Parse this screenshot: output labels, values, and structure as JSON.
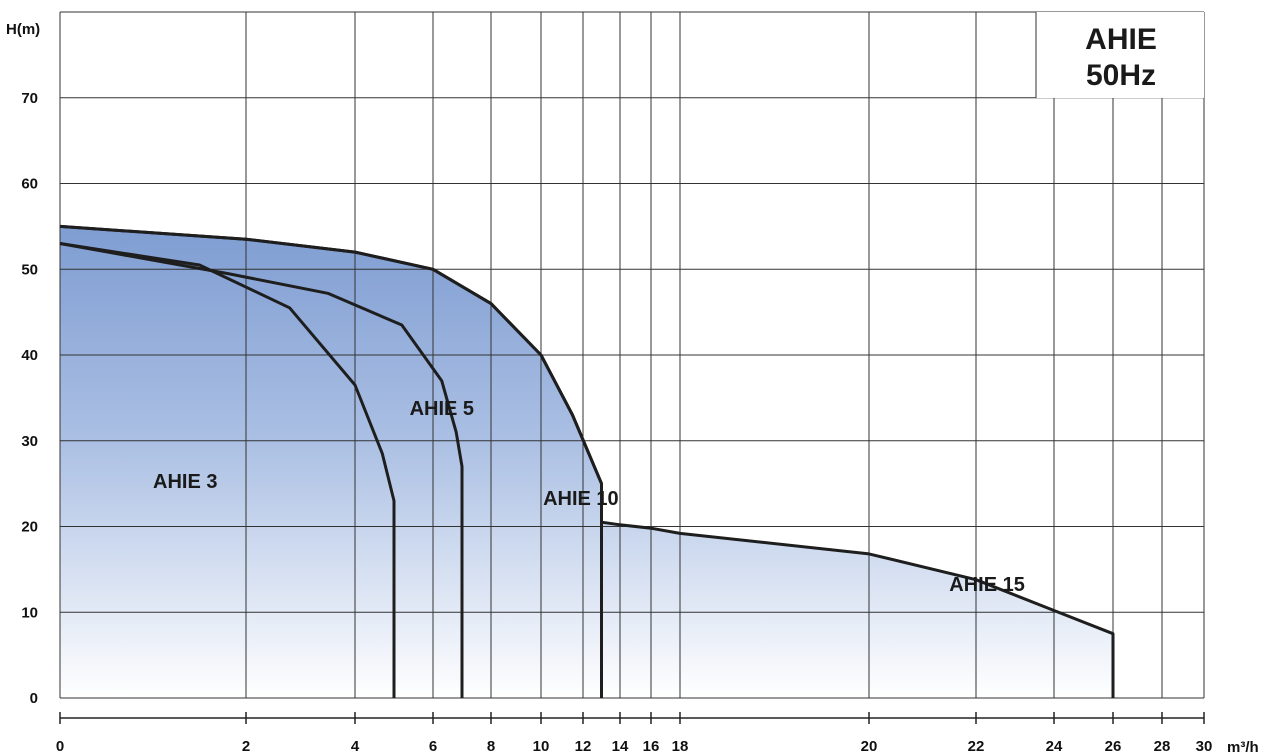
{
  "chart_data": {
    "type": "area",
    "title": "",
    "badge": [
      "AHIE",
      "50Hz"
    ],
    "ylabel": "H(m)",
    "xlabel": "m³/h",
    "ylim": [
      0,
      80
    ],
    "yticks": [
      0,
      10,
      20,
      30,
      40,
      50,
      60,
      70
    ],
    "xticks": [
      0,
      2,
      4,
      6,
      8,
      10,
      12,
      14,
      16,
      18,
      20,
      22,
      24,
      26,
      28,
      30
    ],
    "x_scale": "nonuniform",
    "grid": true,
    "series": [
      {
        "name": "AHIE 15",
        "points": [
          [
            0,
            55
          ],
          [
            2,
            53.5
          ],
          [
            4,
            52
          ],
          [
            6,
            50
          ],
          [
            8,
            46
          ],
          [
            10,
            40
          ],
          [
            11.5,
            33
          ],
          [
            13,
            25
          ],
          [
            13,
            20.5
          ],
          [
            14,
            20.2
          ],
          [
            16,
            19.8
          ],
          [
            18,
            19.2
          ],
          [
            20,
            16.8
          ],
          [
            22,
            13.8
          ],
          [
            24,
            10.2
          ],
          [
            26,
            7.5
          ],
          [
            26,
            0
          ]
        ]
      },
      {
        "name": "AHIE 10",
        "points": [
          [
            0,
            55
          ],
          [
            2,
            53.5
          ],
          [
            4,
            52
          ],
          [
            6,
            50
          ],
          [
            8,
            46
          ],
          [
            10,
            40
          ],
          [
            11.5,
            33
          ],
          [
            13,
            25
          ],
          [
            13,
            0
          ]
        ]
      },
      {
        "name": "AHIE 5",
        "points": [
          [
            0,
            53
          ],
          [
            1.8,
            49.5
          ],
          [
            3.5,
            47.2
          ],
          [
            5.2,
            43.5
          ],
          [
            6.3,
            37
          ],
          [
            6.8,
            31
          ],
          [
            7,
            27
          ],
          [
            7,
            0
          ]
        ]
      },
      {
        "name": "AHIE 3",
        "points": [
          [
            0,
            53
          ],
          [
            1.5,
            50.5
          ],
          [
            2.8,
            45.5
          ],
          [
            4,
            36.5
          ],
          [
            4.7,
            28.5
          ],
          [
            5,
            23
          ],
          [
            5,
            0
          ]
        ]
      }
    ],
    "region_labels": [
      {
        "text": "AHIE 3",
        "x": 1.0,
        "y": 24.5
      },
      {
        "text": "AHIE 5",
        "x": 5.4,
        "y": 33
      },
      {
        "text": "AHIE 10",
        "x": 10.1,
        "y": 22.5
      },
      {
        "text": "AHIE 15",
        "x": 21.5,
        "y": 12.5
      }
    ]
  }
}
